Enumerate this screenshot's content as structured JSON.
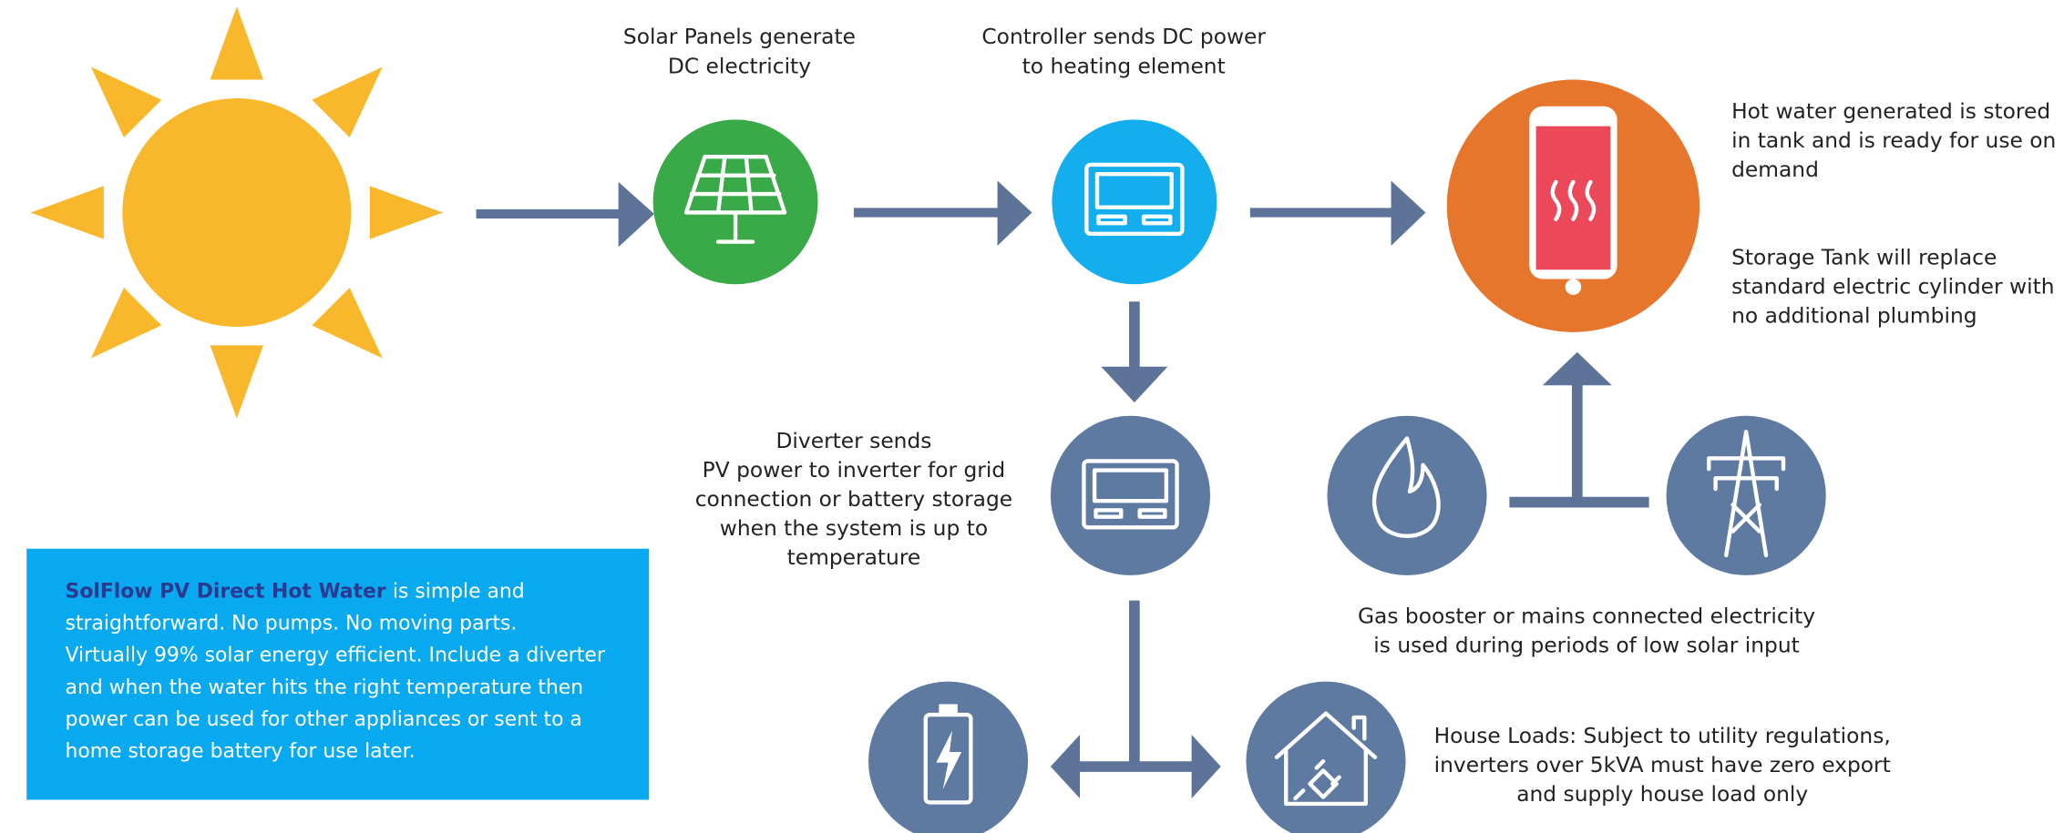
{
  "steps": {
    "solar_panels": {
      "label": [
        "Solar Panels generate",
        "DC electricity"
      ]
    },
    "controller": {
      "label": [
        "Controller sends DC power",
        "to heating element"
      ]
    },
    "tank": {
      "label": [
        "Hot water generated is stored",
        "in tank and is ready for use on",
        "demand"
      ],
      "note": [
        "Storage Tank will replace",
        "standard electric cylinder with",
        "no additional plumbing"
      ]
    },
    "diverter": {
      "label": [
        "Diverter sends",
        "PV power to inverter for grid",
        "connection or battery storage",
        "when the system is up to",
        "temperature"
      ]
    },
    "backup": {
      "label": [
        "Gas booster or mains connected electricity",
        "is used during periods of low solar input"
      ]
    },
    "house_loads": {
      "label": [
        "House Loads: Subject to utility regulations,",
        "inverters over 5kVA must have zero export",
        "and supply house load only"
      ]
    }
  },
  "info_box": {
    "highlight": "SolFlow PV Direct Hot Water",
    "lines": [
      "is simple and",
      "straightforward. No pumps. No moving parts.",
      "Virtually 99% solar energy efficient. Include a diverter",
      "and when the water hits the right temperature then",
      "power can be used for other appliances or sent to a",
      "home storage battery for use later."
    ]
  }
}
